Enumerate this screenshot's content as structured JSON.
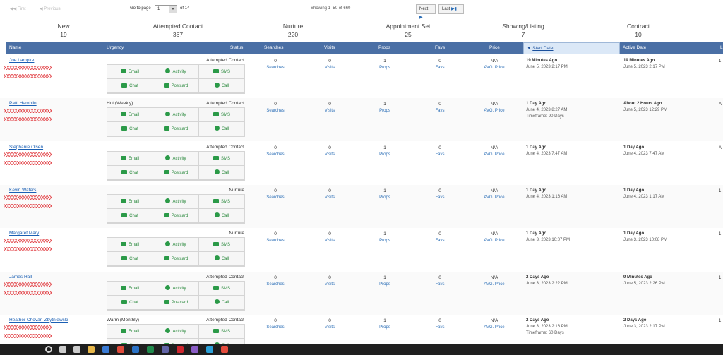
{
  "pager": {
    "first": "First",
    "previous": "Previous",
    "go_to_page": "Go to page",
    "page_value": "1",
    "of_pages": "of 14",
    "showing": "Showing 1–50 of 660",
    "next": "Next",
    "last": "Last"
  },
  "stages": [
    {
      "name": "New",
      "count": "19"
    },
    {
      "name": "Attempted Contact",
      "count": "367"
    },
    {
      "name": "Nurture",
      "count": "220"
    },
    {
      "name": "Appointment Set",
      "count": "25"
    },
    {
      "name": "Showing/Listing",
      "count": "7"
    },
    {
      "name": "Contract",
      "count": "10"
    }
  ],
  "columns": {
    "name": "Name",
    "urgency": "Urgency",
    "status": "Status",
    "searches": "Searches",
    "visits": "Visits",
    "props": "Props",
    "favs": "Favs",
    "price": "Price",
    "start_date": "Start Date",
    "active_date": "Active Date",
    "edge": "L"
  },
  "actions": {
    "email": "Email",
    "activity": "Activity",
    "sms": "SMS",
    "chat": "Chat",
    "postcard": "Postcard",
    "call": "Call"
  },
  "stat_labels": {
    "searches": "Searches",
    "visits": "Visits",
    "props": "Props",
    "favs": "Favs",
    "price": "AVG. Price"
  },
  "redacted_text": "XXXXXXXXXXXXXXXXXX",
  "rows": [
    {
      "name": "Joe Lampke",
      "urgency": "",
      "status": "Attempted Contact",
      "searches": "0",
      "visits": "0",
      "props": "1",
      "favs": "0",
      "price": "N/A",
      "start_ago": "19 Minutes Ago",
      "start_date": "June 5, 2023 2:17 PM",
      "timeframe": "",
      "active_ago": "19 Minutes Ago",
      "active_date": "June 5, 2023 2:17 PM",
      "edge": "1"
    },
    {
      "name": "Patti Hamblin",
      "urgency": "Hot (Weekly)",
      "status": "Attempted Contact",
      "searches": "0",
      "visits": "0",
      "props": "1",
      "favs": "0",
      "price": "N/A",
      "start_ago": "1 Day Ago",
      "start_date": "June 4, 2023 8:27 AM",
      "timeframe": "Timeframe: 90 Days",
      "active_ago": "About 2 Hours Ago",
      "active_date": "June 5, 2023 12:29 PM",
      "edge": "A"
    },
    {
      "name": "Stephanie Olsen",
      "urgency": "",
      "status": "Attempted Contact",
      "searches": "0",
      "visits": "0",
      "props": "1",
      "favs": "0",
      "price": "N/A",
      "start_ago": "1 Day Ago",
      "start_date": "June 4, 2023 7:47 AM",
      "timeframe": "",
      "active_ago": "1 Day Ago",
      "active_date": "June 4, 2023 7:47 AM",
      "edge": "A"
    },
    {
      "name": "Kevin Waters",
      "urgency": "",
      "status": "Nurture",
      "searches": "0",
      "visits": "0",
      "props": "1",
      "favs": "0",
      "price": "N/A",
      "start_ago": "1 Day Ago",
      "start_date": "June 4, 2023 1:16 AM",
      "timeframe": "",
      "active_ago": "1 Day Ago",
      "active_date": "June 4, 2023 1:17 AM",
      "edge": "1"
    },
    {
      "name": "Margaret Mary",
      "urgency": "",
      "status": "Nurture",
      "searches": "0",
      "visits": "0",
      "props": "1",
      "favs": "0",
      "price": "N/A",
      "start_ago": "1 Day Ago",
      "start_date": "June 3, 2023 10:07 PM",
      "timeframe": "",
      "active_ago": "1 Day Ago",
      "active_date": "June 3, 2023 10:08 PM",
      "edge": "1"
    },
    {
      "name": "James Hall",
      "urgency": "",
      "status": "Attempted Contact",
      "searches": "0",
      "visits": "0",
      "props": "1",
      "favs": "0",
      "price": "N/A",
      "start_ago": "2 Days Ago",
      "start_date": "June 3, 2023 2:22 PM",
      "timeframe": "",
      "active_ago": "9 Minutes Ago",
      "active_date": "June 5, 2023 2:26 PM",
      "edge": "1"
    },
    {
      "name": "Heather Chovan-Zbytniewski",
      "urgency": "Warm (Monthly)",
      "status": "Attempted Contact",
      "searches": "0",
      "visits": "0",
      "props": "1",
      "favs": "0",
      "price": "N/A",
      "start_ago": "2 Days Ago",
      "start_date": "June 3, 2023 2:16 PM",
      "timeframe": "Timeframe: 60 Days",
      "active_ago": "2 Days Ago",
      "active_date": "June 3, 2023 2:17 PM",
      "edge": "1"
    }
  ],
  "taskbar_icons": [
    "windows-start-icon",
    "search-icon",
    "task-view-icon",
    "file-explorer-icon",
    "store-icon",
    "chrome-icon",
    "outlook-icon",
    "excel-icon",
    "teams-icon",
    "opera-icon",
    "app-icon",
    "edge-icon",
    "scrivener-icon"
  ]
}
